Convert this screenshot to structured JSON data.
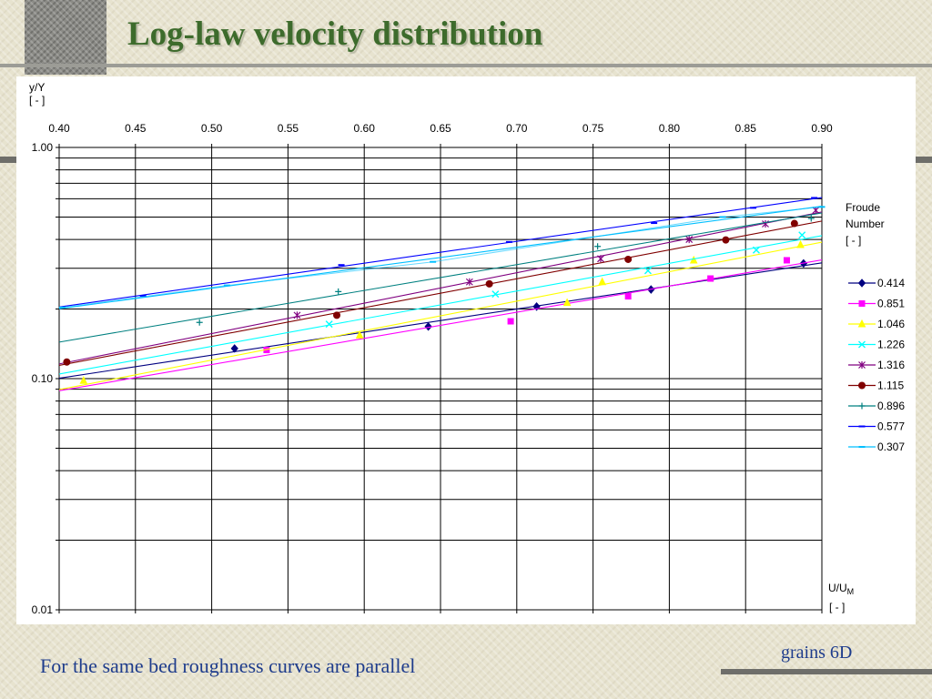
{
  "slide": {
    "title": "Log-law velocity distribution",
    "caption": "For the same bed roughness curves are parallel",
    "note": "grains 6D"
  },
  "chart_data": {
    "type": "scatter",
    "title": "",
    "y_axis_label": [
      "y/Y",
      "[ - ]"
    ],
    "x_axis_label": {
      "main": "U/U",
      "sub": "M",
      "units": "[ - ]"
    },
    "x_scale": "linear",
    "y_scale": "log",
    "xlim": [
      0.4,
      0.9
    ],
    "ylim": [
      0.01,
      1.0
    ],
    "x_ticks": [
      "0.40",
      "0.45",
      "0.50",
      "0.55",
      "0.60",
      "0.65",
      "0.70",
      "0.75",
      "0.80",
      "0.85",
      "0.90"
    ],
    "y_ticks": [
      {
        "value": 1.0,
        "label": "1.00"
      },
      {
        "value": 0.1,
        "label": "0.10"
      },
      {
        "value": 0.01,
        "label": "0.01"
      }
    ],
    "x_tick_position": "top",
    "grid": true,
    "legend_title": [
      "Froude",
      "Number",
      "[ - ]"
    ],
    "legend_position": "right",
    "series": [
      {
        "name": "0.414",
        "color": "#000080",
        "marker": "diamond",
        "trend": true,
        "points": [
          [
            0.515,
            0.135
          ],
          [
            0.642,
            0.168
          ],
          [
            0.713,
            0.205
          ],
          [
            0.788,
            0.243
          ],
          [
            0.888,
            0.315
          ]
        ]
      },
      {
        "name": "0.851",
        "color": "#ff00ff",
        "marker": "square",
        "trend": true,
        "points": [
          [
            0.536,
            0.133
          ],
          [
            0.696,
            0.177
          ],
          [
            0.773,
            0.227
          ],
          [
            0.827,
            0.271
          ],
          [
            0.877,
            0.325
          ]
        ]
      },
      {
        "name": "1.046",
        "color": "#ffff00",
        "marker": "triangle",
        "trend": true,
        "points": [
          [
            0.416,
            0.098
          ],
          [
            0.597,
            0.154
          ],
          [
            0.733,
            0.213
          ],
          [
            0.756,
            0.262
          ],
          [
            0.816,
            0.325
          ],
          [
            0.886,
            0.379
          ]
        ]
      },
      {
        "name": "1.226",
        "color": "#00ffff",
        "marker": "x",
        "trend": true,
        "points": [
          [
            0.577,
            0.172
          ],
          [
            0.686,
            0.232
          ],
          [
            0.786,
            0.293
          ],
          [
            0.857,
            0.36
          ],
          [
            0.887,
            0.418
          ]
        ]
      },
      {
        "name": "1.316",
        "color": "#800080",
        "marker": "star",
        "trend": true,
        "points": [
          [
            0.556,
            0.188
          ],
          [
            0.669,
            0.262
          ],
          [
            0.755,
            0.33
          ],
          [
            0.813,
            0.4
          ],
          [
            0.863,
            0.467
          ],
          [
            0.896,
            0.535
          ]
        ]
      },
      {
        "name": "1.115",
        "color": "#800000",
        "marker": "circle",
        "trend": true,
        "points": [
          [
            0.405,
            0.118
          ],
          [
            0.582,
            0.188
          ],
          [
            0.682,
            0.257
          ],
          [
            0.773,
            0.328
          ],
          [
            0.837,
            0.398
          ],
          [
            0.882,
            0.469
          ]
        ]
      },
      {
        "name": "0.896",
        "color": "#008080",
        "marker": "plus",
        "trend": true,
        "points": [
          [
            0.492,
            0.175
          ],
          [
            0.583,
            0.238
          ],
          [
            0.753,
            0.373
          ],
          [
            0.893,
            0.493
          ]
        ]
      },
      {
        "name": "0.577",
        "color": "#0000ff",
        "marker": "dash",
        "trend": true,
        "points": [
          [
            0.455,
            0.228
          ],
          [
            0.585,
            0.31
          ],
          [
            0.695,
            0.39
          ],
          [
            0.79,
            0.471
          ],
          [
            0.855,
            0.548
          ],
          [
            0.895,
            0.605
          ]
        ]
      },
      {
        "name": "0.307",
        "color": "#00bfff",
        "marker": "dash",
        "trend": false,
        "points": [
          [
            0.402,
            0.203
          ],
          [
            0.51,
            0.253
          ],
          [
            0.645,
            0.32
          ],
          [
            0.835,
            0.5
          ],
          [
            0.9,
            0.553
          ]
        ]
      }
    ]
  }
}
